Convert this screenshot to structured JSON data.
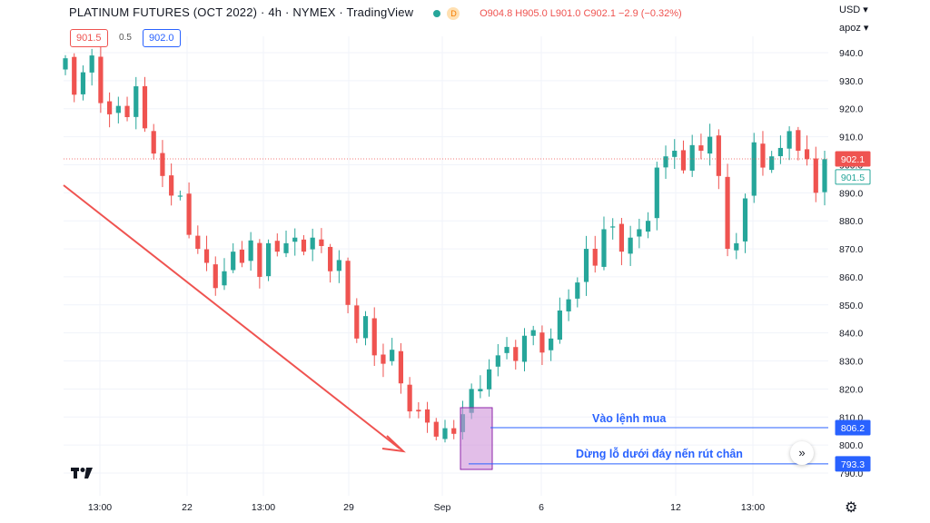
{
  "header": {
    "title": "PLATINUM FUTURES (OCT 2022) · 4h · NYMEX · TradingView",
    "d_badge": "D",
    "ohlc": "O904.8 H905.0 L901.0 C902.1 −2.9 (−0.32%)"
  },
  "order": {
    "sell": "901.5",
    "spread": "0.5",
    "buy": "902.0"
  },
  "axis": {
    "currency": "USD",
    "unit": "apoz"
  },
  "icons": [
    "tradingview-logo-icon",
    "double-chevron-right-icon",
    "gear-icon",
    "chevron-down-icon"
  ],
  "chart_data": {
    "type": "candlestick",
    "y_ticks": [
      "940.0",
      "930.0",
      "920.0",
      "910.0",
      "900.0",
      "890.0",
      "880.0",
      "870.0",
      "860.0",
      "850.0",
      "840.0",
      "830.0",
      "820.0",
      "810.0",
      "800.0",
      "790.0"
    ],
    "ylim": [
      787,
      944
    ],
    "x_ticks": [
      "13:00",
      "22",
      "13:00",
      "29",
      "Sep",
      "6",
      "12",
      "13:00"
    ],
    "price_labels": [
      {
        "text": "902.1",
        "value": 902.1,
        "color": "#ef5350"
      },
      {
        "text": "901.5",
        "value": 901.5,
        "color": "#26a69a"
      },
      {
        "text": "806.2",
        "value": 806.2,
        "color": "#2962ff"
      },
      {
        "text": "793.3",
        "value": 793.3,
        "color": "#2962ff"
      }
    ],
    "annotations": [
      "Vào lệnh mua",
      "Dừng lỗ dưới đáy nến rút chân"
    ],
    "hlines": [
      806.2,
      793.3
    ],
    "colors": {
      "up": "#26a69a",
      "down": "#ef5350",
      "arrow": "#ef5350",
      "hl": "#2962ff",
      "box": "#ce93d8"
    },
    "closes": [
      938,
      925,
      933,
      939,
      922,
      918,
      921,
      917,
      928,
      913,
      904,
      896,
      889,
      889,
      875,
      870,
      865,
      856,
      862,
      869,
      865,
      873,
      860,
      872,
      869,
      872,
      874,
      869,
      874,
      871,
      862,
      866,
      850,
      838,
      846,
      832,
      829,
      834,
      822,
      812,
      812,
      808,
      803,
      806,
      804,
      811,
      820,
      820,
      827,
      832,
      835,
      830,
      839,
      841,
      833,
      838,
      848,
      852,
      858,
      870,
      864,
      877,
      878,
      869,
      874,
      877,
      880,
      899,
      903,
      905,
      898,
      907,
      905,
      910,
      896,
      870,
      872,
      888,
      908,
      899,
      903,
      906,
      912,
      905,
      902,
      890,
      902
    ]
  }
}
